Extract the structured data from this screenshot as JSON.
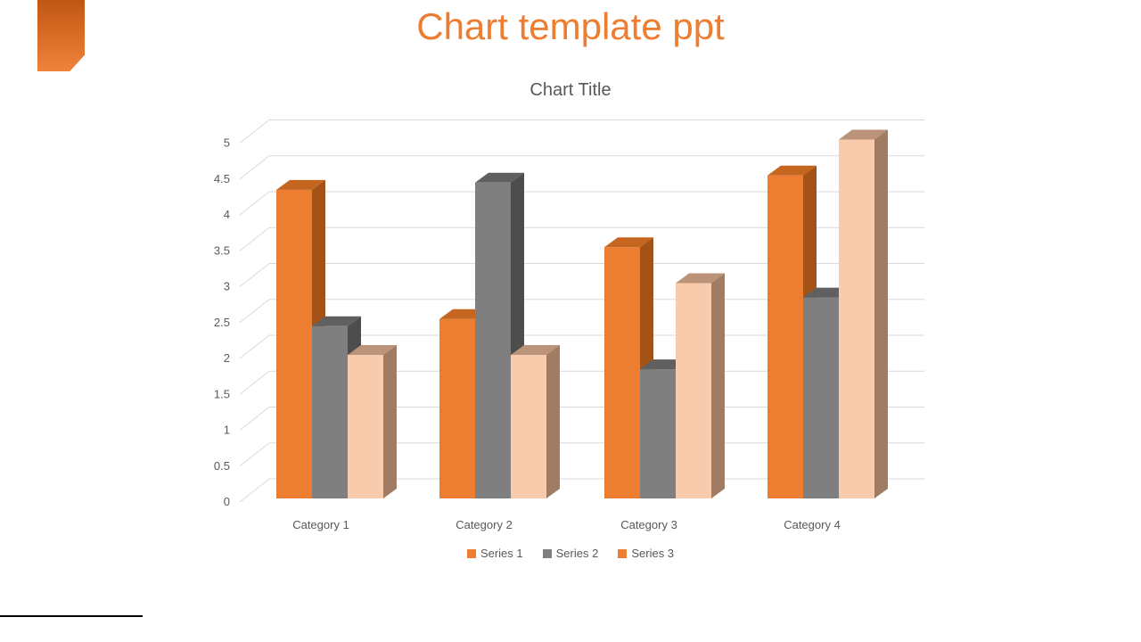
{
  "page": {
    "title": "Chart template ppt",
    "accent_color": "#ED7D31",
    "background_color": "#FFFFFF"
  },
  "corner_accent": {
    "gradient_top": "#C05712",
    "gradient_bottom": "#F0823C"
  },
  "footer_rule_color": "#000000",
  "text_colors": {
    "chart_text": "#595959"
  },
  "chart": {
    "legend": [
      {
        "label": "Series 1",
        "color": "#ED7D31"
      },
      {
        "label": "Series 2",
        "color": "#7F7F7F"
      },
      {
        "label": "Series 3",
        "color": "#ED7D31"
      }
    ]
  },
  "chart_data": {
    "type": "bar",
    "subtype": "3d-clustered-column",
    "title": "Chart Title",
    "categories": [
      "Category 1",
      "Category 2",
      "Category 3",
      "Category 4"
    ],
    "series": [
      {
        "name": "Series 1",
        "values": [
          4.3,
          2.5,
          3.5,
          4.5
        ],
        "front": "#ED7D31",
        "top": "#C4661F",
        "side": "#A35317"
      },
      {
        "name": "Series 2",
        "values": [
          2.4,
          4.4,
          1.8,
          2.8
        ],
        "front": "#7F7F7F",
        "top": "#606060",
        "side": "#4D4D4D"
      },
      {
        "name": "Series 3",
        "values": [
          2,
          2,
          3,
          5
        ],
        "front": "#F8CBAD",
        "top": "#BB9378",
        "side": "#9F7C62"
      }
    ],
    "xlabel": "",
    "ylabel": "",
    "ylim": [
      0,
      5
    ],
    "ytick_step": 0.5,
    "ytick_labels": [
      "0",
      "0.5",
      "1",
      "1.5",
      "2",
      "2.5",
      "3",
      "3.5",
      "4",
      "4.5",
      "5"
    ],
    "grid": true,
    "gridline_color": "#D9D9D9",
    "label_color": "#595959",
    "legend_position": "bottom"
  }
}
